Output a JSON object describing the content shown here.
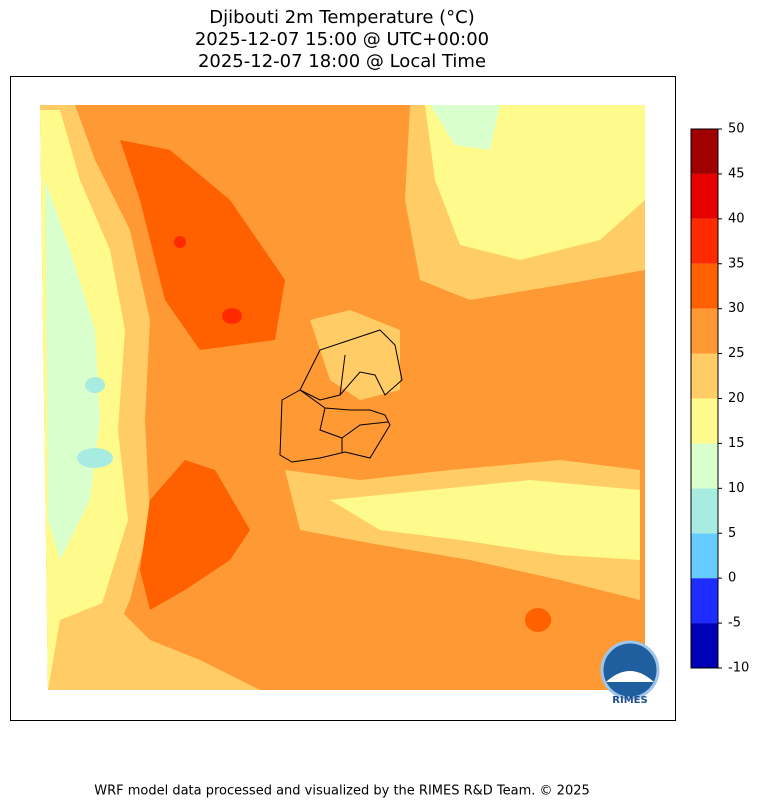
{
  "map": {
    "title": [
      "Djibouti 2m Temperature (°C)",
      "2025-12-07 15:00 @ UTC+00:00",
      "2025-12-07 18:00 @ Local Time"
    ],
    "colorbar": {
      "lim": [
        -10,
        50
      ],
      "ticks": [
        -10,
        -5,
        0,
        5,
        10,
        15,
        20,
        25,
        30,
        35,
        40,
        45,
        50
      ],
      "colors": [
        "#0000b4",
        "#1e2dff",
        "#66ccff",
        "#a8ebe0",
        "#d9ffcc",
        "#fffa8c",
        "#ffcc66",
        "#ff9933",
        "#ff6000",
        "#ff2a00",
        "#e60000",
        "#a00000"
      ]
    },
    "logo": "RIMES",
    "footer": "WRF model data processed and visualized by the RIMES R&D Team. © 2025"
  }
}
